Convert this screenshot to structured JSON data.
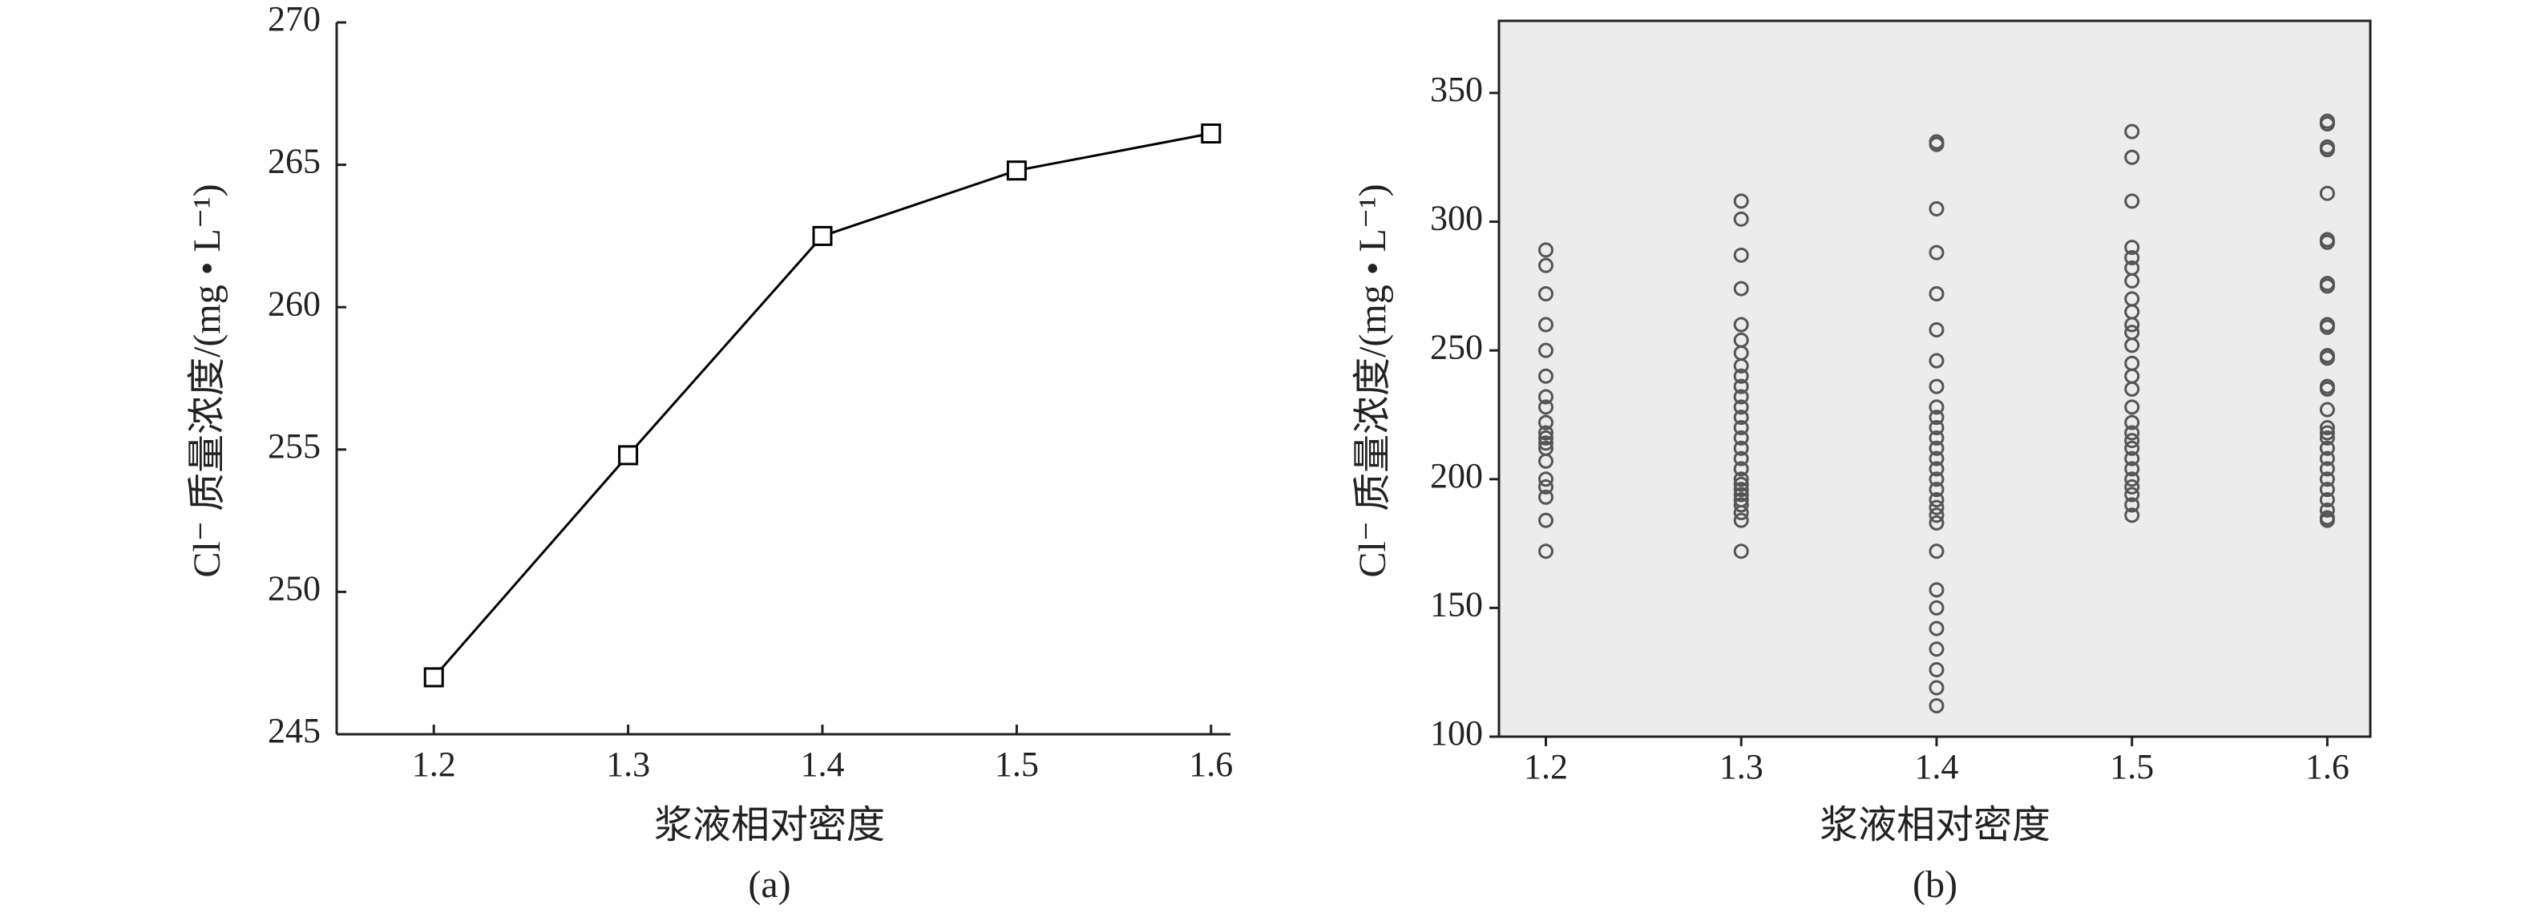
{
  "chart_data": [
    {
      "type": "line",
      "caption": "(a)",
      "xlabel": "浆液相对密度",
      "ylabel": "Cl⁻ 质量浓度/(mg • L⁻¹)",
      "x": [
        1.2,
        1.3,
        1.4,
        1.5,
        1.6
      ],
      "values": [
        247,
        254.8,
        262.5,
        264.8,
        266.1
      ],
      "color": "#000000",
      "marker": "square",
      "xlim": [
        1.15,
        1.61
      ],
      "xticks": [
        1.2,
        1.3,
        1.4,
        1.5,
        1.6
      ],
      "ylim": [
        245,
        270
      ],
      "yticks": [
        245,
        250,
        255,
        260,
        265,
        270
      ]
    },
    {
      "type": "scatter",
      "caption": "(b)",
      "xlabel": "浆液相对密度",
      "ylabel": "Cl⁻ 质量浓度/(mg • L⁻¹)",
      "x": [
        1.2,
        1.2,
        1.2,
        1.2,
        1.2,
        1.2,
        1.2,
        1.2,
        1.2,
        1.2,
        1.2,
        1.2,
        1.2,
        1.2,
        1.2,
        1.2,
        1.2,
        1.2,
        1.2,
        1.3,
        1.3,
        1.3,
        1.3,
        1.3,
        1.3,
        1.3,
        1.3,
        1.3,
        1.3,
        1.3,
        1.3,
        1.3,
        1.3,
        1.3,
        1.3,
        1.3,
        1.3,
        1.3,
        1.3,
        1.3,
        1.3,
        1.3,
        1.3,
        1.3,
        1.3,
        1.3,
        1.4,
        1.4,
        1.4,
        1.4,
        1.4,
        1.4,
        1.4,
        1.4,
        1.4,
        1.4,
        1.4,
        1.4,
        1.4,
        1.4,
        1.4,
        1.4,
        1.4,
        1.4,
        1.4,
        1.4,
        1.4,
        1.4,
        1.4,
        1.4,
        1.4,
        1.4,
        1.4,
        1.4,
        1.4,
        1.5,
        1.5,
        1.5,
        1.5,
        1.5,
        1.5,
        1.5,
        1.5,
        1.5,
        1.5,
        1.5,
        1.5,
        1.5,
        1.5,
        1.5,
        1.5,
        1.5,
        1.5,
        1.5,
        1.5,
        1.5,
        1.5,
        1.5,
        1.5,
        1.5,
        1.5,
        1.5,
        1.6,
        1.6,
        1.6,
        1.6,
        1.6,
        1.6,
        1.6,
        1.6,
        1.6,
        1.6,
        1.6,
        1.6,
        1.6,
        1.6,
        1.6,
        1.6,
        1.6,
        1.6,
        1.6,
        1.6,
        1.6,
        1.6,
        1.6,
        1.6,
        1.6,
        1.6,
        1.6,
        1.6
      ],
      "values": [
        289,
        283,
        272,
        260,
        250,
        240,
        232,
        228,
        222,
        218,
        216,
        214,
        212,
        207,
        200,
        197,
        193,
        184,
        172,
        308,
        301,
        287,
        274,
        260,
        254,
        249,
        244,
        240,
        236,
        232,
        228,
        224,
        220,
        216,
        212,
        208,
        204,
        200,
        198,
        196,
        194,
        192,
        190,
        187,
        184,
        172,
        331,
        330,
        305,
        288,
        272,
        258,
        246,
        236,
        228,
        224,
        220,
        216,
        212,
        208,
        204,
        200,
        196,
        192,
        189,
        186,
        183,
        172,
        157,
        150,
        142,
        134,
        126,
        119,
        112,
        335,
        325,
        308,
        290,
        286,
        282,
        277,
        270,
        265,
        260,
        257,
        252,
        245,
        240,
        235,
        228,
        222,
        218,
        215,
        212,
        208,
        204,
        200,
        197,
        194,
        190,
        186,
        339,
        338,
        329,
        328,
        311,
        293,
        292,
        276,
        275,
        260,
        259,
        248,
        247,
        236,
        235,
        227,
        220,
        218,
        216,
        212,
        208,
        204,
        200,
        196,
        192,
        188,
        185,
        184
      ],
      "color": "#555555",
      "marker": "circle",
      "background": "#ececec",
      "frame": true,
      "xlim": [
        1.176,
        1.622
      ],
      "xticks": [
        1.2,
        1.3,
        1.4,
        1.5,
        1.6
      ],
      "ylim": [
        100,
        378
      ],
      "yticks": [
        100,
        150,
        200,
        250,
        300,
        350
      ]
    }
  ]
}
